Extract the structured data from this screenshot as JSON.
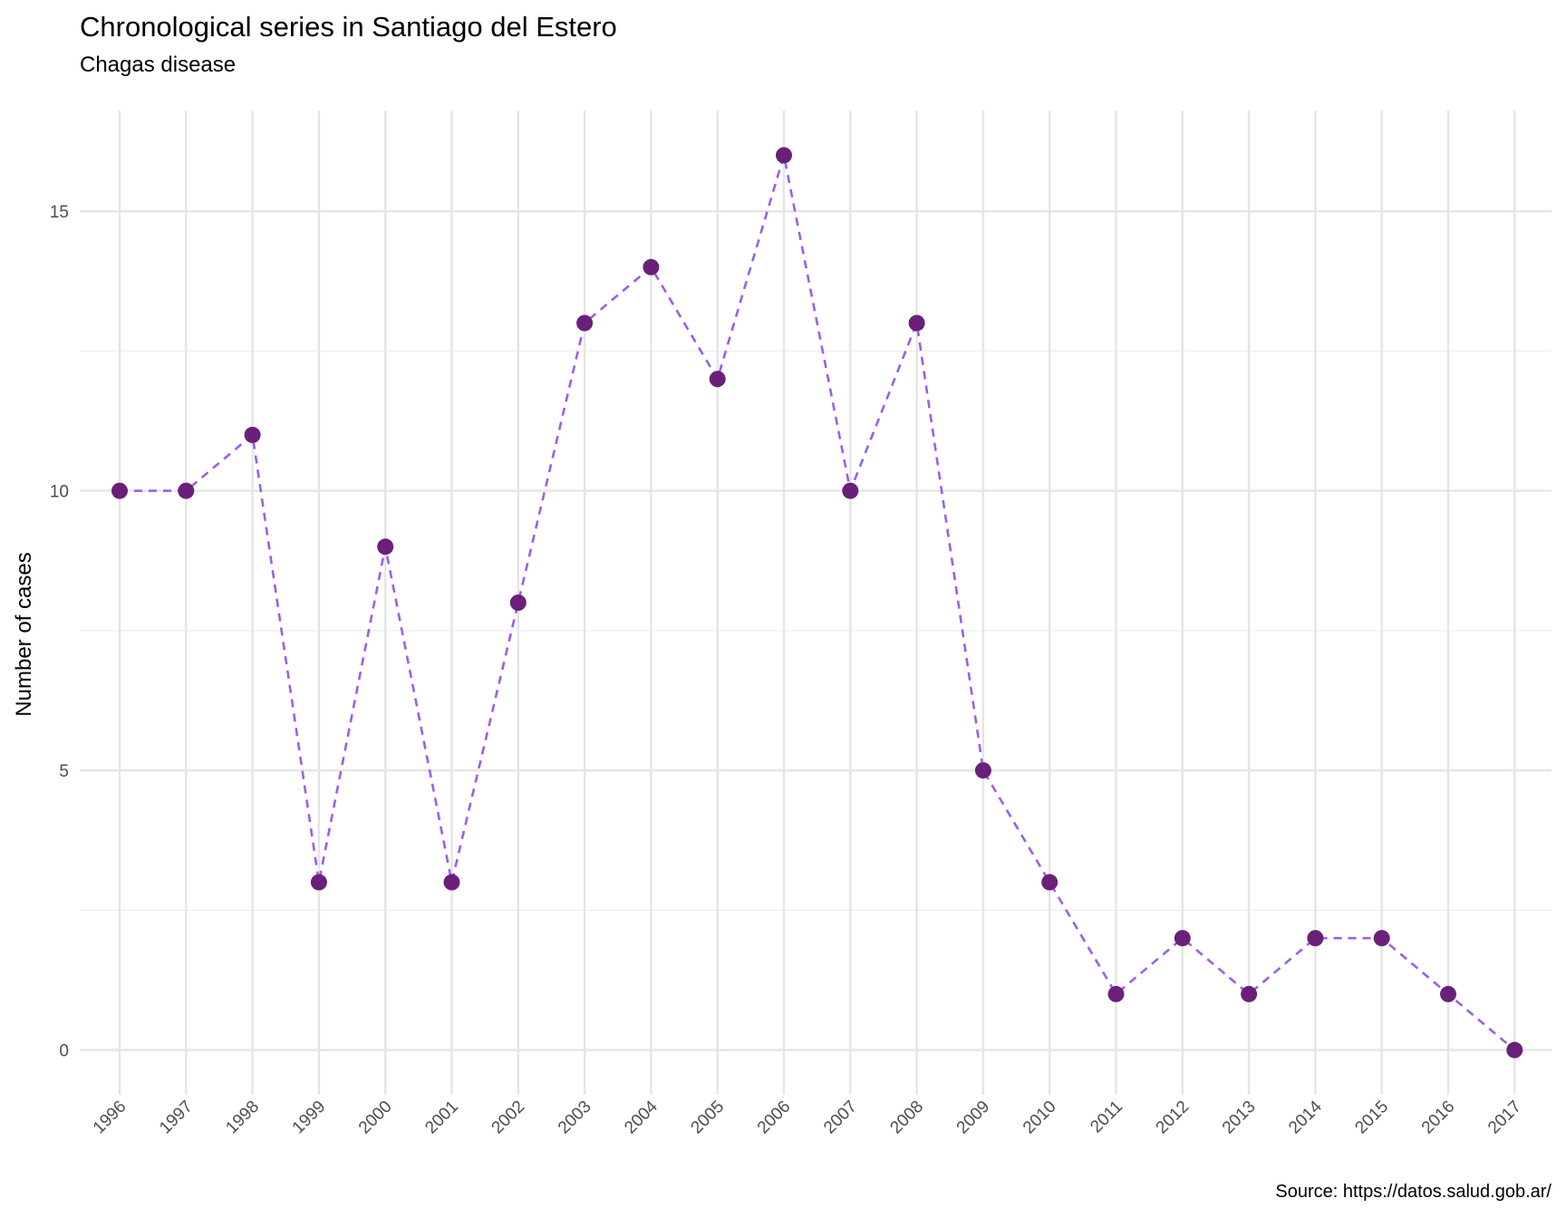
{
  "chart_data": {
    "type": "line",
    "title": "Chronological series in Santiago del Estero",
    "subtitle": "Chagas disease",
    "caption": "Source: https://datos.salud.gob.ar/",
    "xlabel": "",
    "ylabel": "Number of cases",
    "x": [
      "1996",
      "1997",
      "1998",
      "1999",
      "2000",
      "2001",
      "2002",
      "2003",
      "2004",
      "2005",
      "2006",
      "2007",
      "2008",
      "2009",
      "2010",
      "2011",
      "2012",
      "2013",
      "2014",
      "2015",
      "2016",
      "2017"
    ],
    "series": [
      {
        "values": [
          10,
          10,
          11,
          3,
          9,
          3,
          8,
          13,
          14,
          12,
          16,
          10,
          13,
          5,
          3,
          1,
          2,
          1,
          2,
          2,
          1,
          0
        ]
      }
    ],
    "ylim": [
      -0.8,
      16.8
    ],
    "yticks": [
      0,
      5,
      10,
      15
    ],
    "grid": true,
    "line_style": "dashed",
    "line_color": "#9B5FE8",
    "point_color": "#6A2078"
  }
}
